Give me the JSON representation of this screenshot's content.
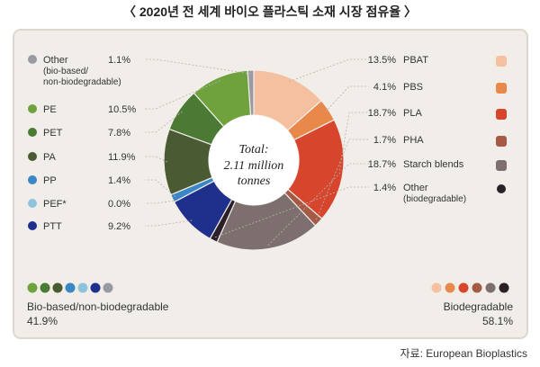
{
  "title": "〈 2020년 전 세계 바이오 플라스틱 소재 시장 점유율 〉",
  "source": "자료: European Bioplastics",
  "center": {
    "line1": "Total:",
    "line2": "2.11 million",
    "line3": "tonnes"
  },
  "groups": {
    "bio_based": {
      "label": "Bio-based/non-biodegradable",
      "value": "41.9%"
    },
    "biodegradable": {
      "label": "Biodegradable",
      "value": "58.1%"
    }
  },
  "chart_data": {
    "type": "pie",
    "total_label": "Total: 2.11 million tonnes",
    "series": [
      {
        "name": "PBAT",
        "value": 13.5,
        "label": "13.5%",
        "color": "#f5c0a0",
        "group": "Biodegradable"
      },
      {
        "name": "PBS",
        "value": 4.1,
        "label": "4.1%",
        "color": "#e8884a",
        "group": "Biodegradable"
      },
      {
        "name": "PLA",
        "value": 18.7,
        "label": "18.7%",
        "color": "#d8452d",
        "group": "Biodegradable"
      },
      {
        "name": "PHA",
        "value": 1.7,
        "label": "1.7%",
        "color": "#a55a45",
        "group": "Biodegradable"
      },
      {
        "name": "Starch blends",
        "value": 18.7,
        "label": "18.7%",
        "color": "#7d6f6e",
        "group": "Biodegradable"
      },
      {
        "name": "Other",
        "sub": "(biodegradable)",
        "value": 1.4,
        "label": "1.4%",
        "color": "#2b1f2a",
        "group": "Biodegradable"
      },
      {
        "name": "PTT",
        "value": 9.2,
        "label": "9.2%",
        "color": "#1f2f8c",
        "group": "Bio-based/non-biodegradable"
      },
      {
        "name": "PEF*",
        "value": 0.0,
        "label": "0.0%",
        "color": "#8fc3de",
        "group": "Bio-based/non-biodegradable"
      },
      {
        "name": "PP",
        "value": 1.4,
        "label": "1.4%",
        "color": "#3b86c4",
        "group": "Bio-based/non-biodegradable"
      },
      {
        "name": "PA",
        "value": 11.9,
        "label": "11.9%",
        "color": "#4a5a33",
        "group": "Bio-based/non-biodegradable"
      },
      {
        "name": "PET",
        "value": 7.8,
        "label": "7.8%",
        "color": "#4b7a35",
        "group": "Bio-based/non-biodegradable"
      },
      {
        "name": "PE",
        "value": 10.5,
        "label": "10.5%",
        "color": "#6fa23d",
        "group": "Bio-based/non-biodegradable"
      },
      {
        "name": "Other",
        "sub": "(bio-based/ non-biodegradable)",
        "value": 1.1,
        "label": "1.1%",
        "color": "#9a9aa3",
        "group": "Bio-based/non-biodegradable"
      }
    ]
  }
}
